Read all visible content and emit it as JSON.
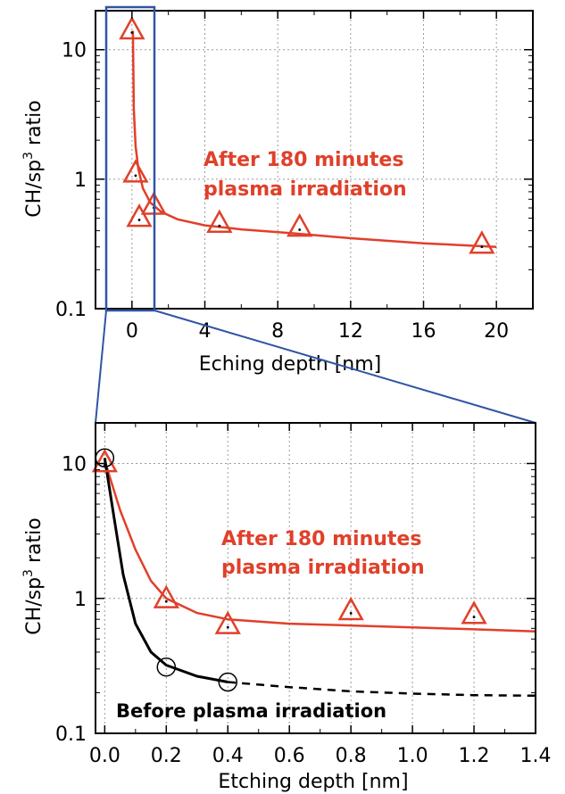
{
  "colors": {
    "after_series": "#e0402a",
    "before_series": "#000000",
    "zoom_box": "#2f55a4",
    "grid": "#9a9a9a"
  },
  "chart_data": [
    {
      "type": "scatter",
      "yscale": "log",
      "grid": true,
      "xlabel": "Eching depth [nm]",
      "ylabel_main": "CH/sp",
      "ylabel_sup": "3",
      "ylabel_tail": " ratio",
      "xlim": [
        -2,
        22
      ],
      "ylim": [
        0.1,
        20
      ],
      "xticks": [
        0,
        4,
        8,
        12,
        16,
        20
      ],
      "xtick_labels": [
        "0",
        "4",
        "8",
        "12",
        "16",
        "20"
      ],
      "yticks": [
        0.1,
        1,
        10
      ],
      "ytick_labels": [
        "0.1",
        "1",
        "10"
      ],
      "annotation": [
        "After 180 minutes",
        "plasma irradiation"
      ],
      "zoom_region": {
        "x": [
          -1,
          1.4
        ]
      },
      "series": [
        {
          "key": "after",
          "marker": "triangle",
          "points": [
            {
              "x": 0,
              "y": 14
            },
            {
              "x": 0.2,
              "y": 1.1
            },
            {
              "x": 0.4,
              "y": 0.5
            },
            {
              "x": 1.2,
              "y": 0.62
            },
            {
              "x": 4.8,
              "y": 0.45
            },
            {
              "x": 9.2,
              "y": 0.42
            },
            {
              "x": 19.2,
              "y": 0.31
            }
          ],
          "fit": [
            {
              "x": 0.05,
              "y": 14
            },
            {
              "x": 0.1,
              "y": 3.5
            },
            {
              "x": 0.2,
              "y": 1.8
            },
            {
              "x": 0.35,
              "y": 1.2
            },
            {
              "x": 0.6,
              "y": 0.85
            },
            {
              "x": 1.0,
              "y": 0.66
            },
            {
              "x": 1.6,
              "y": 0.56
            },
            {
              "x": 2.5,
              "y": 0.49
            },
            {
              "x": 4,
              "y": 0.44
            },
            {
              "x": 6,
              "y": 0.41
            },
            {
              "x": 9,
              "y": 0.38
            },
            {
              "x": 12,
              "y": 0.35
            },
            {
              "x": 16,
              "y": 0.32
            },
            {
              "x": 20,
              "y": 0.3
            }
          ]
        }
      ]
    },
    {
      "type": "scatter",
      "yscale": "log",
      "grid": true,
      "xlabel": "Etching depth [nm]",
      "ylabel_main": "CH/sp",
      "ylabel_sup": "3",
      "ylabel_tail": " ratio",
      "xlim": [
        -0.03,
        1.4
      ],
      "ylim": [
        0.1,
        20
      ],
      "xticks": [
        0.0,
        0.2,
        0.4,
        0.6,
        0.8,
        1.0,
        1.2,
        1.4
      ],
      "xtick_labels": [
        "0.0",
        "0.2",
        "0.4",
        "0.6",
        "0.8",
        "1.0",
        "1.2",
        "1.4"
      ],
      "yticks": [
        0.1,
        1,
        10
      ],
      "ytick_labels": [
        "0.1",
        "1",
        "10"
      ],
      "annotation_after": [
        "After 180 minutes",
        "plasma irradiation"
      ],
      "annotation_before": "Before plasma irradiation",
      "series": [
        {
          "key": "after",
          "marker": "triangle",
          "points": [
            {
              "x": 0,
              "y": 10
            },
            {
              "x": 0.2,
              "y": 0.98
            },
            {
              "x": 0.4,
              "y": 0.63
            },
            {
              "x": 0.8,
              "y": 0.8
            },
            {
              "x": 1.2,
              "y": 0.75
            }
          ],
          "fit": [
            {
              "x": 0.0,
              "y": 10.5
            },
            {
              "x": 0.05,
              "y": 4.5
            },
            {
              "x": 0.1,
              "y": 2.3
            },
            {
              "x": 0.15,
              "y": 1.35
            },
            {
              "x": 0.2,
              "y": 1.0
            },
            {
              "x": 0.3,
              "y": 0.78
            },
            {
              "x": 0.4,
              "y": 0.7
            },
            {
              "x": 0.6,
              "y": 0.65
            },
            {
              "x": 0.8,
              "y": 0.63
            },
            {
              "x": 1.0,
              "y": 0.61
            },
            {
              "x": 1.2,
              "y": 0.59
            },
            {
              "x": 1.4,
              "y": 0.57
            }
          ]
        },
        {
          "key": "before",
          "marker": "circle",
          "points": [
            {
              "x": 0,
              "y": 11
            },
            {
              "x": 0.2,
              "y": 0.31
            },
            {
              "x": 0.4,
              "y": 0.24
            }
          ],
          "fit_solid": [
            {
              "x": 0.0,
              "y": 11
            },
            {
              "x": 0.03,
              "y": 4
            },
            {
              "x": 0.06,
              "y": 1.5
            },
            {
              "x": 0.1,
              "y": 0.65
            },
            {
              "x": 0.15,
              "y": 0.4
            },
            {
              "x": 0.2,
              "y": 0.32
            },
            {
              "x": 0.3,
              "y": 0.265
            },
            {
              "x": 0.4,
              "y": 0.24
            }
          ],
          "fit_dashed": [
            {
              "x": 0.4,
              "y": 0.24
            },
            {
              "x": 0.6,
              "y": 0.22
            },
            {
              "x": 0.8,
              "y": 0.205
            },
            {
              "x": 1.0,
              "y": 0.197
            },
            {
              "x": 1.2,
              "y": 0.192
            },
            {
              "x": 1.4,
              "y": 0.19
            }
          ]
        }
      ]
    }
  ]
}
